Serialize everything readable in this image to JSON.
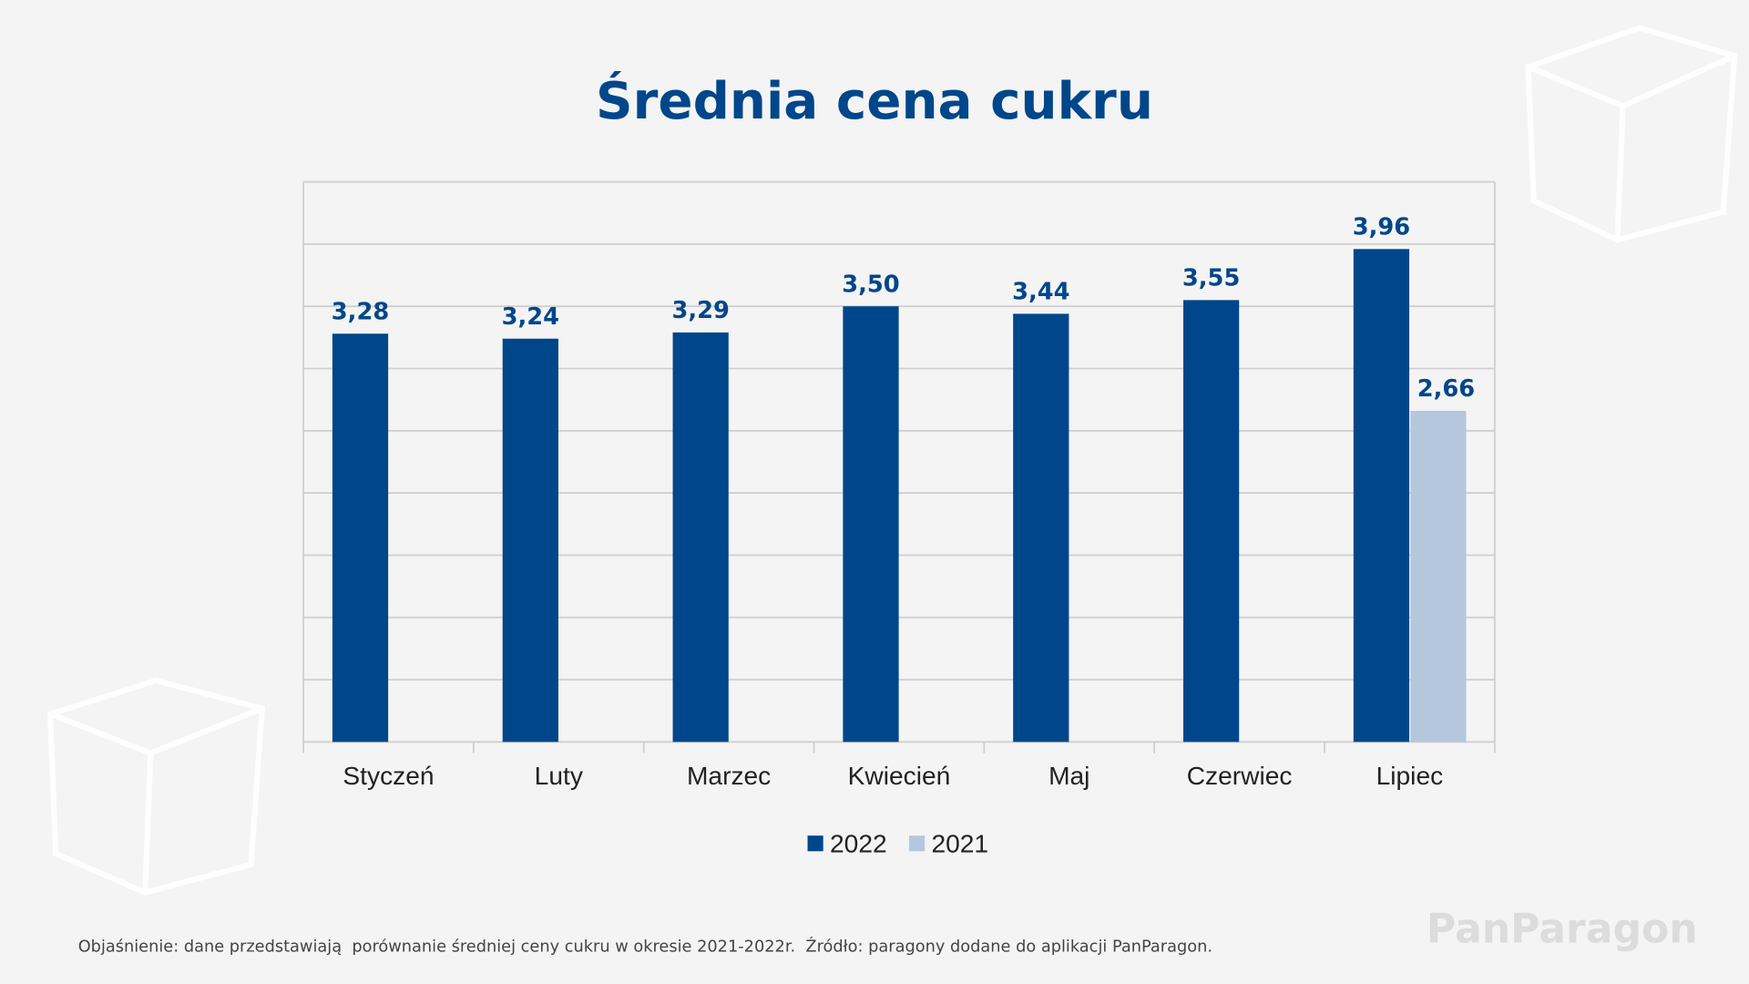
{
  "chart_data": {
    "type": "bar",
    "title": "Średnia cena cukru",
    "categories": [
      "Styczeń",
      "Luty",
      "Marzec",
      "Kwiecień",
      "Maj",
      "Czerwiec",
      "Lipiec"
    ],
    "series": [
      {
        "name": "2022",
        "color": "#00468b",
        "values": [
          3.28,
          3.24,
          3.29,
          3.5,
          3.44,
          3.55,
          3.96
        ],
        "labels": [
          "3,28",
          "3,24",
          "3,29",
          "3,50",
          "3,44",
          "3,55",
          "3,96"
        ]
      },
      {
        "name": "2021",
        "color": "#b4c7dd",
        "values": [
          null,
          null,
          null,
          null,
          null,
          null,
          2.66
        ],
        "labels": [
          null,
          null,
          null,
          null,
          null,
          null,
          "2,66"
        ]
      }
    ],
    "ylim": [
      0,
      4.5
    ],
    "y_grid_step": 0.5,
    "grid": true,
    "y_tick_labels_shown": false,
    "legend_position": "bottom"
  },
  "footer": {
    "note": "Objaśnienie: dane przedstawiają  porównanie średniej ceny cukru w okresie 2021-2022r.  Źródło: paragony dodane do aplikacji PanParagon.",
    "logo": "PanParagon"
  }
}
